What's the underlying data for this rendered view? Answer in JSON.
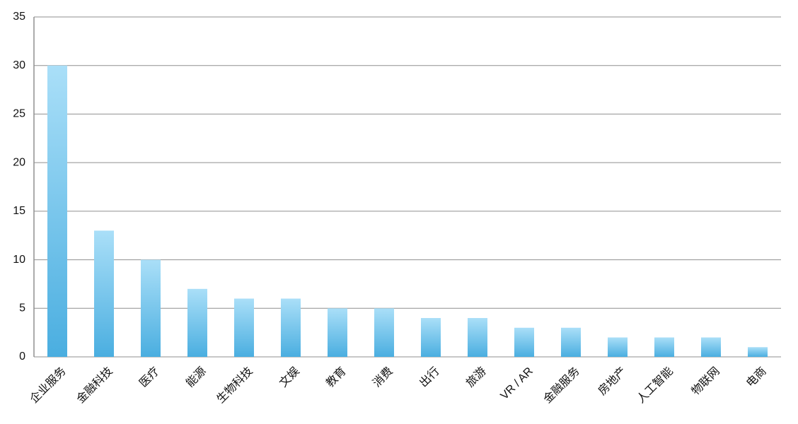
{
  "chart_data": {
    "type": "bar",
    "categories": [
      "企业服务",
      "金融科技",
      "医疗",
      "能源",
      "生物科技",
      "文娱",
      "教育",
      "消费",
      "出行",
      "旅游",
      "VR / AR",
      "金融服务",
      "房地产",
      "人工智能",
      "物联网",
      "电商"
    ],
    "values": [
      30,
      13,
      10,
      7,
      6,
      6,
      5,
      5,
      4,
      4,
      3,
      3,
      2,
      2,
      2,
      1
    ],
    "color": "#4aaee0",
    "ylim": [
      0,
      35
    ],
    "yticks": [
      0,
      5,
      10,
      15,
      20,
      25,
      30,
      35
    ],
    "grid": true
  }
}
